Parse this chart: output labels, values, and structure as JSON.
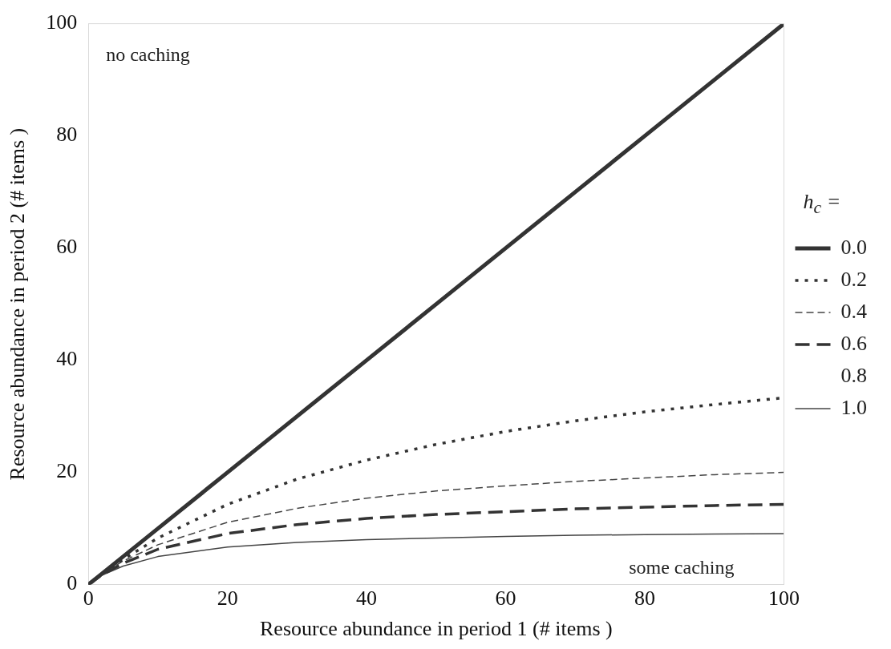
{
  "chart_data": {
    "type": "line",
    "xlabel": "Resource abundance in period 1 (# items )",
    "ylabel": "Resource abundance in period 2 (# items )",
    "legend_title": "h$_{c}$ =",
    "legend": "right",
    "grid": false,
    "marker": "none",
    "x": [
      0,
      2,
      5,
      10,
      20,
      30,
      40,
      50,
      60,
      70,
      80,
      90,
      100
    ],
    "xlim": [
      0,
      100
    ],
    "xticks": [
      0,
      20,
      40,
      60,
      80,
      100
    ],
    "ylim": [
      0,
      100
    ],
    "yticks": [
      0,
      20,
      40,
      60,
      80,
      100
    ],
    "annotations": [
      "no caching",
      "some caching"
    ],
    "series": [
      {
        "name": "0.0",
        "color": "#333333",
        "line_style": "solid",
        "values": [
          0,
          2,
          5,
          10,
          20,
          30,
          40,
          50,
          60,
          70,
          80,
          90,
          100
        ]
      },
      {
        "name": "0.2",
        "color": "#333333",
        "line_style": "dotted",
        "values": [
          0,
          1.9,
          4.5,
          8.3,
          14.3,
          18.8,
          22.2,
          25,
          27.3,
          29.2,
          30.8,
          32.1,
          33.3
        ]
      },
      {
        "name": "0.4",
        "color": "#444444",
        "line_style": "dashed",
        "values": [
          0,
          1.9,
          4.2,
          7.1,
          11.1,
          13.6,
          15.4,
          16.7,
          17.6,
          18.4,
          19.0,
          19.6,
          20
        ]
      },
      {
        "name": "0.6",
        "color": "#333333",
        "line_style": "dashed",
        "values": [
          0,
          1.8,
          3.8,
          6.3,
          9.1,
          10.7,
          11.8,
          12.5,
          13.0,
          13.5,
          13.8,
          14.1,
          14.3
        ]
      },
      {
        "name": "0.8",
        "line_style": "solid",
        "values": [
          null,
          null,
          null,
          null,
          null,
          null,
          null,
          null,
          null,
          null,
          null,
          null,
          null
        ]
      },
      {
        "name": "1.0",
        "color": "#444444",
        "line_style": "solid",
        "values": [
          0,
          1.7,
          3.3,
          5,
          6.7,
          7.5,
          8,
          8.3,
          8.6,
          8.8,
          8.9,
          9,
          9.1
        ]
      }
    ]
  }
}
